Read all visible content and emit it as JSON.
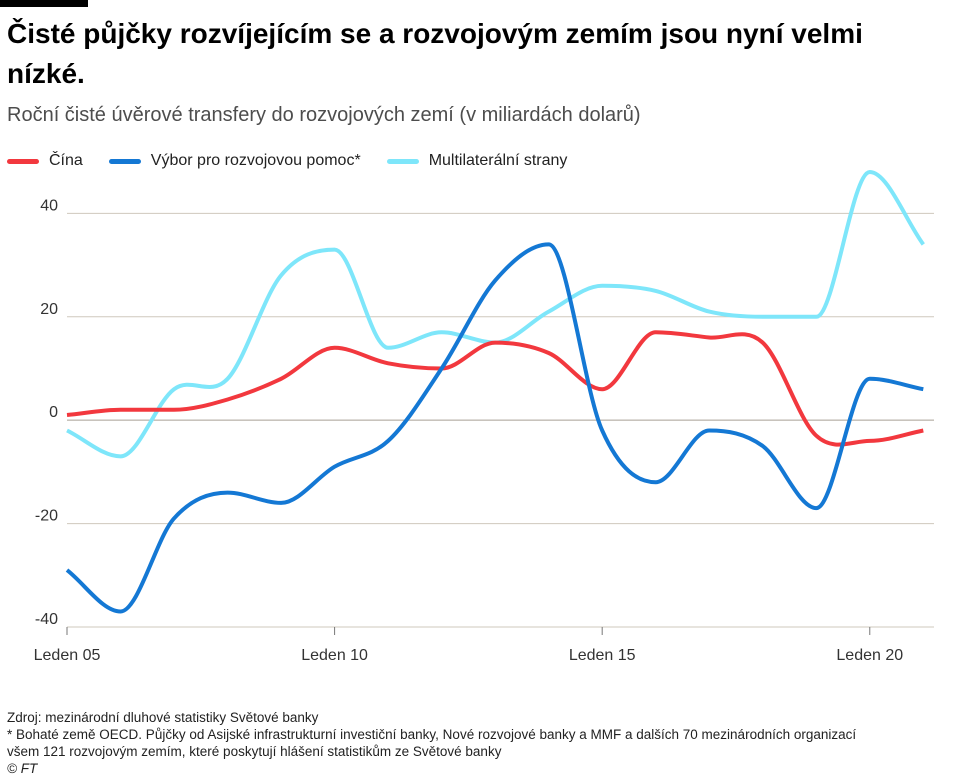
{
  "header": {
    "title": "Čisté půjčky rozvíjejícím se a rozvojovým zemím jsou nyní velmi nízké.",
    "subtitle": "Roční čisté úvěrové transfery do rozvojových zemí (v miliardách dolarů)"
  },
  "footer": {
    "source": "Zdroj: mezinárodní dluhové statistiky Světové banky",
    "note_line1": "* Bohaté země OECD. Půjčky od Asijské infrastrukturní investiční banky, Nové rozvojové banky a MMF a dalších 70 mezinárodních organizací",
    "note_line2": "všem 121 rozvojovým zemím, které poskytují hlášení statistikům ze Světové banky",
    "copyright": "© FT"
  },
  "chart_data": {
    "type": "line",
    "x": [
      2005,
      2006,
      2007,
      2008,
      2009,
      2010,
      2011,
      2012,
      2013,
      2014,
      2015,
      2016,
      2017,
      2018,
      2019,
      2020,
      2021
    ],
    "xlim": [
      2005,
      2021.2
    ],
    "ylim": [
      -40,
      48
    ],
    "yticks": [
      40,
      20,
      0,
      -20,
      -40
    ],
    "ytick_labels": [
      "40",
      "20",
      "0",
      "-20",
      "-40"
    ],
    "xticks": [
      2005,
      2010,
      2015,
      2020
    ],
    "xtick_labels": [
      "Leden 05",
      "Leden 10",
      "Leden 15",
      "Leden 20"
    ],
    "grid": true,
    "legend_position": "top-left",
    "series": [
      {
        "name": "Čína",
        "color": "#f2383e",
        "values": [
          1,
          2,
          2,
          4,
          8,
          14,
          11,
          10,
          15,
          13,
          6,
          17,
          16,
          15,
          -3,
          -4,
          -2
        ]
      },
      {
        "name": "Výbor pro rozvojovou pomoc*",
        "color": "#1478d4",
        "values": [
          -29,
          -37,
          -19,
          -14,
          -16,
          -9,
          -4,
          10,
          27,
          34,
          -2,
          -12,
          -2,
          -5,
          -17,
          8,
          6
        ]
      },
      {
        "name": "Multilaterální strany",
        "color": "#7ee6fa",
        "values": [
          -2,
          -7,
          6,
          8,
          28,
          33,
          14,
          17,
          15,
          21,
          26,
          25,
          21,
          20,
          20,
          48,
          34
        ]
      }
    ]
  }
}
